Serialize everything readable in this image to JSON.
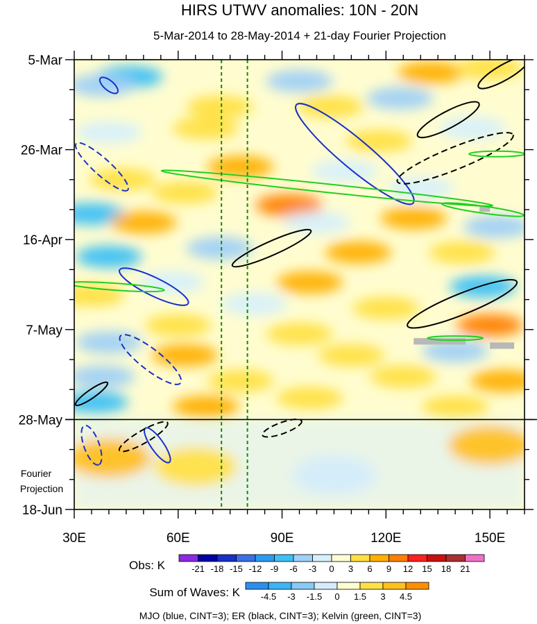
{
  "chart_data": {
    "type": "heatmap",
    "title": "HIRS UTWV anomalies: 10N - 20N",
    "subtitle": "5-Mar-2014 to 28-May-2014 + 21-day Fourier Projection",
    "x": {
      "label": "",
      "range": [
        30,
        160
      ],
      "ticks": [
        {
          "value": 30,
          "label": "30E"
        },
        {
          "value": 60,
          "label": "60E"
        },
        {
          "value": 90,
          "label": "90E"
        },
        {
          "value": 120,
          "label": "120E"
        },
        {
          "value": 150,
          "label": "150E"
        }
      ]
    },
    "y": {
      "label": "",
      "range_days": [
        0,
        105
      ],
      "ticks": [
        {
          "day": 0,
          "label": "5-Mar"
        },
        {
          "day": 21,
          "label": "26-Mar"
        },
        {
          "day": 42,
          "label": "16-Apr"
        },
        {
          "day": 63,
          "label": "7-May"
        },
        {
          "day": 84,
          "label": "28-May"
        },
        {
          "day": 105,
          "label": "18-Jun"
        }
      ]
    },
    "observation_end_day": 84,
    "projection_label": [
      "Fourier",
      "Projection"
    ],
    "reference_longitudes": [
      72.5,
      80
    ],
    "obs_colorbar": {
      "label": "Obs: K",
      "levels": [
        "-21",
        "-18",
        "-15",
        "-12",
        "-9",
        "-6",
        "-3",
        "0",
        "3",
        "6",
        "9",
        "12",
        "15",
        "18",
        "21"
      ],
      "colors": [
        "#8a2be2",
        "#0000a8",
        "#1a2fc8",
        "#3a6fe6",
        "#2b9bf0",
        "#3cc0f5",
        "#9fd0f7",
        "#d6f0fb",
        "#fffdd0",
        "#ffe040",
        "#ffb000",
        "#ff7f00",
        "#ff2020",
        "#c81010",
        "#a83030",
        "#f070c8"
      ]
    },
    "waves_colorbar": {
      "label": "Sum of Waves: K",
      "levels": [
        "-4.5",
        "-3",
        "-1.5",
        "0",
        "1.5",
        "3",
        "4.5"
      ],
      "colors": [
        "#2b8ff0",
        "#3cb4f5",
        "#88c8f5",
        "#d4ecfb",
        "#fffdd0",
        "#ffe048",
        "#ffc020",
        "#ff9000"
      ]
    },
    "footnote": "MJO (blue, CINT=3); ER (black, CINT=3); Kelvin (green, CINT=3)",
    "wave_colors": {
      "MJO": "#1a2fc8",
      "ER": "#000000",
      "Kelvin": "#1fd01f"
    },
    "anomaly_patches": [
      {
        "lon": 46,
        "day": 4,
        "value": -9
      },
      {
        "lon": 38,
        "day": 6,
        "value": -6
      },
      {
        "lon": 95,
        "day": 5,
        "value": -6
      },
      {
        "lon": 133,
        "day": 3,
        "value": 6
      },
      {
        "lon": 150,
        "day": 2,
        "value": 3
      },
      {
        "lon": 72,
        "day": 11,
        "value": 3
      },
      {
        "lon": 104,
        "day": 11,
        "value": 3
      },
      {
        "lon": 124,
        "day": 9,
        "value": -6
      },
      {
        "lon": 40,
        "day": 17,
        "value": -3
      },
      {
        "lon": 68,
        "day": 16,
        "value": 3
      },
      {
        "lon": 118,
        "day": 19,
        "value": 3
      },
      {
        "lon": 145,
        "day": 16,
        "value": -3
      },
      {
        "lon": 78,
        "day": 25,
        "value": 6
      },
      {
        "lon": 108,
        "day": 26,
        "value": -3
      },
      {
        "lon": 44,
        "day": 28,
        "value": 3
      },
      {
        "lon": 92,
        "day": 34,
        "value": 9
      },
      {
        "lon": 62,
        "day": 31,
        "value": 3
      },
      {
        "lon": 130,
        "day": 30,
        "value": -3
      },
      {
        "lon": 35,
        "day": 36,
        "value": -9
      },
      {
        "lon": 50,
        "day": 38,
        "value": 6
      },
      {
        "lon": 128,
        "day": 37,
        "value": 6
      },
      {
        "lon": 100,
        "day": 38,
        "value": -3
      },
      {
        "lon": 152,
        "day": 39,
        "value": -6
      },
      {
        "lon": 40,
        "day": 46,
        "value": -9
      },
      {
        "lon": 72,
        "day": 44,
        "value": -6
      },
      {
        "lon": 112,
        "day": 45,
        "value": 6
      },
      {
        "lon": 142,
        "day": 45,
        "value": 3
      },
      {
        "lon": 58,
        "day": 52,
        "value": -3
      },
      {
        "lon": 98,
        "day": 52,
        "value": 6
      },
      {
        "lon": 148,
        "day": 53,
        "value": -9
      },
      {
        "lon": 35,
        "day": 55,
        "value": 3
      },
      {
        "lon": 82,
        "day": 57,
        "value": -3
      },
      {
        "lon": 120,
        "day": 58,
        "value": 3
      },
      {
        "lon": 150,
        "day": 62,
        "value": 9
      },
      {
        "lon": 60,
        "day": 62,
        "value": 3
      },
      {
        "lon": 95,
        "day": 64,
        "value": 3
      },
      {
        "lon": 40,
        "day": 66,
        "value": -6
      },
      {
        "lon": 62,
        "day": 69,
        "value": 6
      },
      {
        "lon": 110,
        "day": 69,
        "value": 3
      },
      {
        "lon": 140,
        "day": 68,
        "value": -6
      },
      {
        "lon": 38,
        "day": 74,
        "value": -6
      },
      {
        "lon": 78,
        "day": 75,
        "value": 3
      },
      {
        "lon": 125,
        "day": 74,
        "value": 3
      },
      {
        "lon": 154,
        "day": 75,
        "value": 6
      },
      {
        "lon": 36,
        "day": 80,
        "value": -9
      },
      {
        "lon": 68,
        "day": 81,
        "value": 6
      },
      {
        "lon": 98,
        "day": 79,
        "value": 3
      },
      {
        "lon": 140,
        "day": 81,
        "value": 3
      },
      {
        "lon": 40,
        "day": 93,
        "value": 3
      },
      {
        "lon": 65,
        "day": 95,
        "value": 1.5
      },
      {
        "lon": 105,
        "day": 97,
        "value": -1.5
      },
      {
        "lon": 150,
        "day": 90,
        "value": 3
      }
    ],
    "waves": [
      {
        "type": "MJO",
        "sign": "positive",
        "lon": 40,
        "day": 6,
        "rx": 16,
        "ry": 7,
        "rot": 40
      },
      {
        "type": "MJO",
        "sign": "positive",
        "lon": 111,
        "day": 22,
        "rx": 110,
        "ry": 21,
        "rot": 40
      },
      {
        "type": "MJO",
        "sign": "positive",
        "lon": 53,
        "day": 53,
        "rx": 55,
        "ry": 13,
        "rot": 26
      },
      {
        "type": "MJO",
        "sign": "positive",
        "lon": 54,
        "day": 90,
        "rx": 30,
        "ry": 9,
        "rot": 55
      },
      {
        "type": "MJO",
        "sign": "negative",
        "lon": 38,
        "day": 25,
        "rx": 50,
        "ry": 12,
        "rot": 42
      },
      {
        "type": "MJO",
        "sign": "negative",
        "lon": 52,
        "day": 70,
        "rx": 55,
        "ry": 15,
        "rot": 38
      },
      {
        "type": "MJO",
        "sign": "negative",
        "lon": 35,
        "day": 90,
        "rx": 30,
        "ry": 11,
        "rot": 70
      },
      {
        "type": "ER",
        "sign": "positive",
        "lon": 138,
        "day": 14,
        "rx": 50,
        "ry": 12,
        "rot": -28
      },
      {
        "type": "ER",
        "sign": "positive",
        "lon": 154,
        "day": 3,
        "rx": 42,
        "ry": 11,
        "rot": -30
      },
      {
        "type": "ER",
        "sign": "positive",
        "lon": 87,
        "day": 44,
        "rx": 62,
        "ry": 10,
        "rot": -24
      },
      {
        "type": "ER",
        "sign": "positive",
        "lon": 142,
        "day": 57,
        "rx": 85,
        "ry": 15,
        "rot": -22
      },
      {
        "type": "ER",
        "sign": "positive",
        "lon": 35,
        "day": 78,
        "rx": 28,
        "ry": 6,
        "rot": -35
      },
      {
        "type": "ER",
        "sign": "negative",
        "lon": 140,
        "day": 23,
        "rx": 90,
        "ry": 16,
        "rot": -22
      },
      {
        "type": "ER",
        "sign": "negative",
        "lon": 50,
        "day": 88,
        "rx": 40,
        "ry": 9,
        "rot": -30
      },
      {
        "type": "ER",
        "sign": "negative",
        "lon": 90,
        "day": 86,
        "rx": 30,
        "ry": 8,
        "rot": -20
      },
      {
        "type": "Kelvin",
        "sign": "positive",
        "lon": 103,
        "day": 30,
        "rx": 240,
        "ry": 6,
        "rot": 6
      },
      {
        "type": "Kelvin",
        "sign": "positive",
        "lon": 42,
        "day": 53,
        "rx": 70,
        "ry": 5,
        "rot": 4
      },
      {
        "type": "Kelvin",
        "sign": "positive",
        "lon": 148,
        "day": 35,
        "rx": 60,
        "ry": 5,
        "rot": 8
      },
      {
        "type": "Kelvin",
        "sign": "positive",
        "lon": 152,
        "day": 22,
        "rx": 40,
        "ry": 4,
        "rot": 0
      },
      {
        "type": "Kelvin",
        "sign": "positive",
        "lon": 140,
        "day": 65,
        "rx": 40,
        "ry": 3,
        "rot": 0
      }
    ],
    "missing_data": [
      {
        "lon": [
          147,
          150
        ],
        "day": [
          34,
          35.5
        ]
      },
      {
        "lon": [
          128,
          143
        ],
        "day": [
          65,
          66.5
        ]
      },
      {
        "lon": [
          150,
          157
        ],
        "day": [
          66,
          67.5
        ]
      }
    ]
  }
}
